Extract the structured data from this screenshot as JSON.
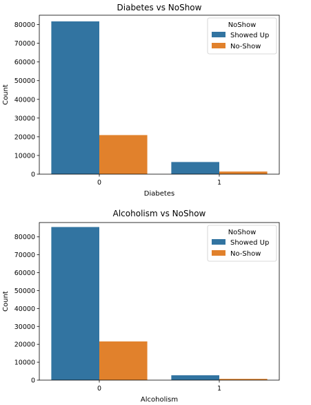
{
  "chart_data": [
    {
      "type": "bar",
      "title": "Diabetes vs NoShow",
      "xlabel": "Diabetes",
      "ylabel": "Count",
      "categories": [
        "0",
        "1"
      ],
      "ylim": [
        0,
        85000
      ],
      "yticks": [
        0,
        10000,
        20000,
        30000,
        40000,
        50000,
        60000,
        70000,
        80000
      ],
      "legend": {
        "title": "NoShow",
        "placement": "top-right"
      },
      "series": [
        {
          "name": "Showed Up",
          "color": "#3274a1",
          "values": [
            81700,
            6500
          ]
        },
        {
          "name": "No-Show",
          "color": "#e1812c",
          "values": [
            20900,
            1400
          ]
        }
      ]
    },
    {
      "type": "bar",
      "title": "Alcoholism vs NoShow",
      "xlabel": "Alcoholism",
      "ylabel": "Count",
      "categories": [
        "0",
        "1"
      ],
      "ylim": [
        0,
        88000
      ],
      "yticks": [
        0,
        10000,
        20000,
        30000,
        40000,
        50000,
        60000,
        70000,
        80000
      ],
      "legend": {
        "title": "NoShow",
        "placement": "top-right"
      },
      "series": [
        {
          "name": "Showed Up",
          "color": "#3274a1",
          "values": [
            85500,
            2700
          ]
        },
        {
          "name": "No-Show",
          "color": "#e1812c",
          "values": [
            21600,
            700
          ]
        }
      ]
    }
  ]
}
